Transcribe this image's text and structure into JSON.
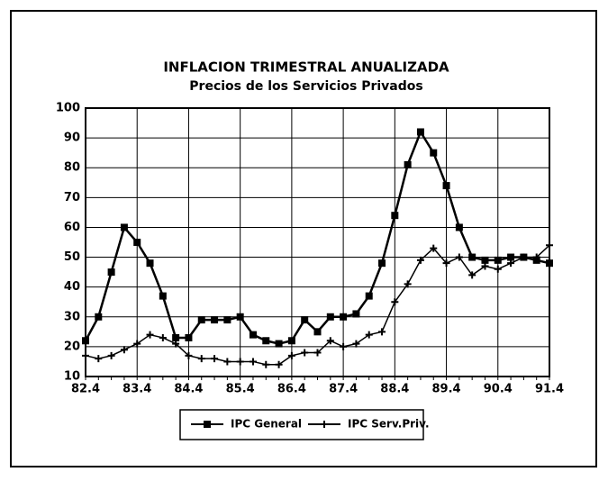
{
  "chart_data": {
    "type": "line",
    "title": "INFLACION TRIMESTRAL ANUALIZADA",
    "subtitle": "Precios de los Servicios Privados",
    "categories": [
      "82.4",
      null,
      null,
      null,
      "83.4",
      null,
      null,
      null,
      "84.4",
      null,
      null,
      null,
      "85.4",
      null,
      null,
      null,
      "86.4",
      null,
      null,
      null,
      "87.4",
      null,
      null,
      null,
      "88.4",
      null,
      null,
      null,
      "89.4",
      null,
      null,
      null,
      "90.4",
      null,
      null,
      null,
      "91.4"
    ],
    "series": [
      {
        "name": "IPC General",
        "color": "#000000",
        "marker": "square",
        "values": [
          22,
          30,
          45,
          60,
          55,
          48,
          37,
          23,
          23,
          29,
          29,
          29,
          30,
          24,
          22,
          21,
          22,
          29,
          25,
          30,
          30,
          31,
          37,
          48,
          64,
          81,
          92,
          85,
          74,
          60,
          50,
          49,
          49,
          50,
          50,
          49,
          48
        ]
      },
      {
        "name": "IPC Serv.Priv.",
        "color": "#000000",
        "marker": "plus",
        "values": [
          17,
          16,
          17,
          19,
          21,
          24,
          23,
          21,
          17,
          16,
          16,
          15,
          15,
          15,
          14,
          14,
          17,
          18,
          18,
          22,
          20,
          21,
          24,
          25,
          35,
          41,
          49,
          53,
          48,
          50,
          44,
          47,
          46,
          48,
          50,
          50,
          54
        ]
      }
    ],
    "ylim": [
      10,
      100
    ],
    "yticks": [
      10,
      20,
      30,
      40,
      50,
      60,
      70,
      80,
      90,
      100
    ],
    "grid": true,
    "legend": "bottom"
  }
}
